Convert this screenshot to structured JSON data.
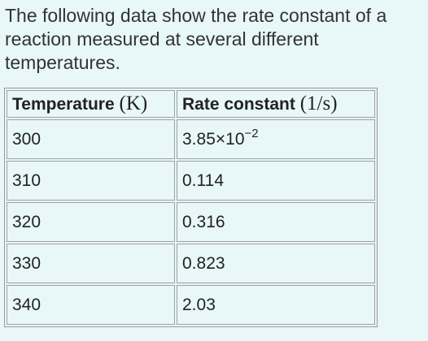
{
  "intro": {
    "line1": "The following data show the rate constant of a",
    "line2": "reaction measured at several different",
    "line3": "temperatures."
  },
  "table": {
    "headers": [
      {
        "label": "Temperature",
        "unit": "(K)"
      },
      {
        "label": "Rate constant",
        "unit": "(1/s)"
      }
    ],
    "rows": [
      {
        "temperature": "300",
        "rate_mantissa": "3.85×10",
        "rate_exponent": "−2"
      },
      {
        "temperature": "310",
        "rate": "0.114"
      },
      {
        "temperature": "320",
        "rate": "0.316"
      },
      {
        "temperature": "330",
        "rate": "0.823"
      },
      {
        "temperature": "340",
        "rate": "2.03"
      }
    ]
  }
}
